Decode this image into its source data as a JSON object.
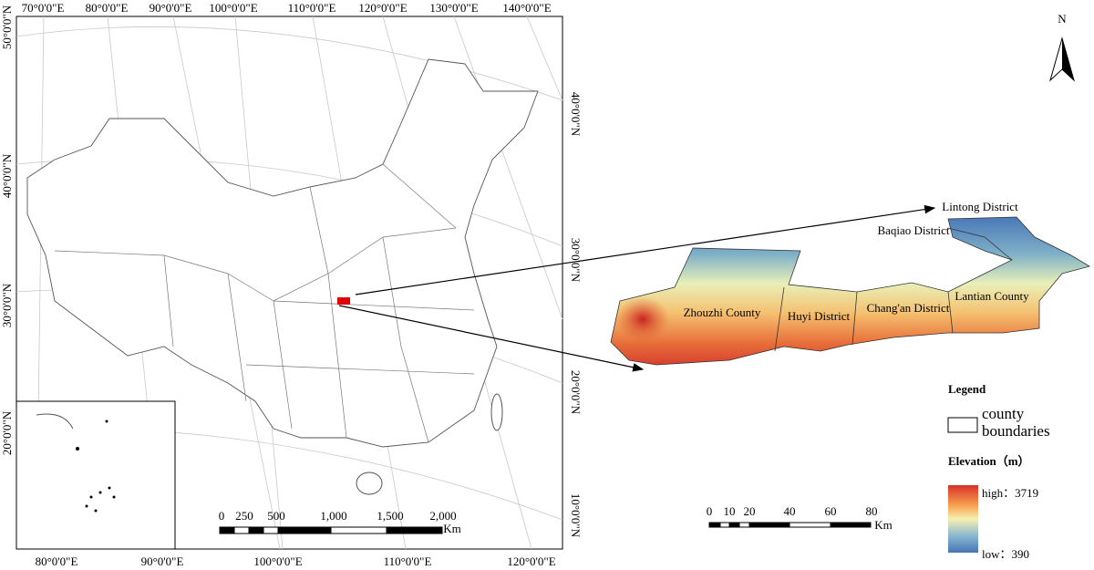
{
  "overview_map": {
    "top_labels": [
      "70°0'0\"E",
      "80°0'0\"E",
      "90°0'0\"E",
      "100°0'0\"E",
      "110°0'0\"E",
      "120°0'0\"E",
      "130°0'0\"E",
      "140°0'0\"E"
    ],
    "bottom_labels": [
      "80°0'0\"E",
      "90°0'0\"E",
      "100°0'0\"E",
      "110°0'0\"E",
      "120°0'0\"E"
    ],
    "left_labels": [
      "50°0'0\"N",
      "40°0'0\"N",
      "30°0'0\"N",
      "20°0'0\"N"
    ],
    "right_labels": [
      "40°0'0\"N",
      "30°0'0\"N",
      "20°0'0\"N",
      "10°0'0\"N"
    ],
    "scale_bar": {
      "ticks": [
        "0",
        "250",
        "500",
        "1,000",
        "1,500",
        "2,000"
      ],
      "unit": "Km"
    }
  },
  "detail_map": {
    "districts": [
      "Lintong District",
      "Baqiao District",
      "Zhouzhi County",
      "Huyi District",
      "Chang'an District",
      "Lantian County"
    ],
    "scale_bar": {
      "ticks": [
        "0",
        "10",
        "20",
        "40",
        "60",
        "80"
      ],
      "unit": "Km"
    }
  },
  "north_arrow": "N",
  "legend": {
    "title": "Legend",
    "boundary_label": "county boundaries",
    "elevation_title": "Elevation（m）",
    "high": "high：3719",
    "low": "low：390"
  }
}
